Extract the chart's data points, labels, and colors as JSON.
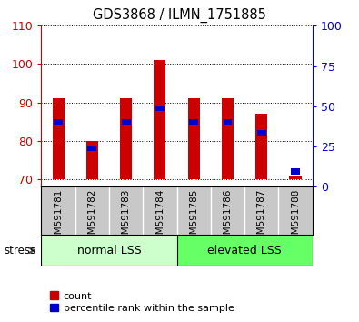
{
  "title": "GDS3868 / ILMN_1751885",
  "categories": [
    "GSM591781",
    "GSM591782",
    "GSM591783",
    "GSM591784",
    "GSM591785",
    "GSM591786",
    "GSM591787",
    "GSM591788"
  ],
  "bar_bottoms": [
    70,
    70,
    70,
    70,
    70,
    70,
    70,
    70
  ],
  "bar_tops": [
    91,
    80,
    91,
    101,
    91,
    91,
    87,
    71
  ],
  "percentile_values": [
    85,
    78,
    85,
    88.5,
    85,
    85,
    82,
    72
  ],
  "ylim_left": [
    68,
    110
  ],
  "ylim_right": [
    0,
    100
  ],
  "yticks_left": [
    70,
    80,
    90,
    100,
    110
  ],
  "yticks_right": [
    0,
    25,
    50,
    75,
    100
  ],
  "bar_color": "#cc0000",
  "percentile_color": "#0000cc",
  "group1_label": "normal LSS",
  "group2_label": "elevated LSS",
  "group1_color": "#ccffcc",
  "group2_color": "#66ff66",
  "stress_label": "stress",
  "tick_label_color_left": "#cc0000",
  "tick_label_color_right": "#0000cc",
  "legend_count_label": "count",
  "legend_percentile_label": "percentile rank within the sample",
  "xtick_bg_color": "#c8c8c8",
  "bar_width": 0.35
}
